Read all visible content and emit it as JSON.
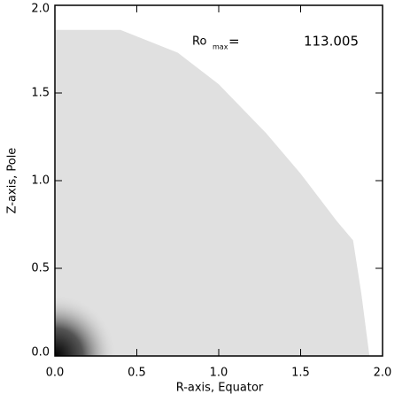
{
  "chart_data": {
    "type": "area",
    "xlabel": "R-axis, Equator",
    "ylabel": "Z-axis, Pole",
    "annotation": {
      "text": "Ro",
      "subscript": "max",
      "equals": "=",
      "value": 113.005
    },
    "x": [
      0.0,
      0.4,
      0.75,
      1.0,
      1.29,
      1.5,
      1.72,
      1.82,
      1.87,
      1.92
    ],
    "values": [
      1.86,
      1.86,
      1.73,
      1.55,
      1.27,
      1.04,
      0.77,
      0.66,
      0.36,
      0.0
    ],
    "color": "#e0e0e0",
    "xlim": [
      0,
      2
    ],
    "ylim": [
      0,
      2
    ],
    "xticks": [
      {
        "value": 0,
        "label": "0.0"
      },
      {
        "value": 0.5,
        "label": "0.5"
      },
      {
        "value": 1,
        "label": "1.0"
      },
      {
        "value": 1.5,
        "label": "1.5"
      },
      {
        "value": 2,
        "label": "2.0"
      }
    ],
    "yticks": [
      {
        "value": 0,
        "label": "0.0"
      },
      {
        "value": 0.5,
        "label": "0.5"
      },
      {
        "value": 1,
        "label": "1.0"
      },
      {
        "value": 1.5,
        "label": "1.5"
      },
      {
        "value": 2,
        "label": "2.0"
      }
    ]
  }
}
